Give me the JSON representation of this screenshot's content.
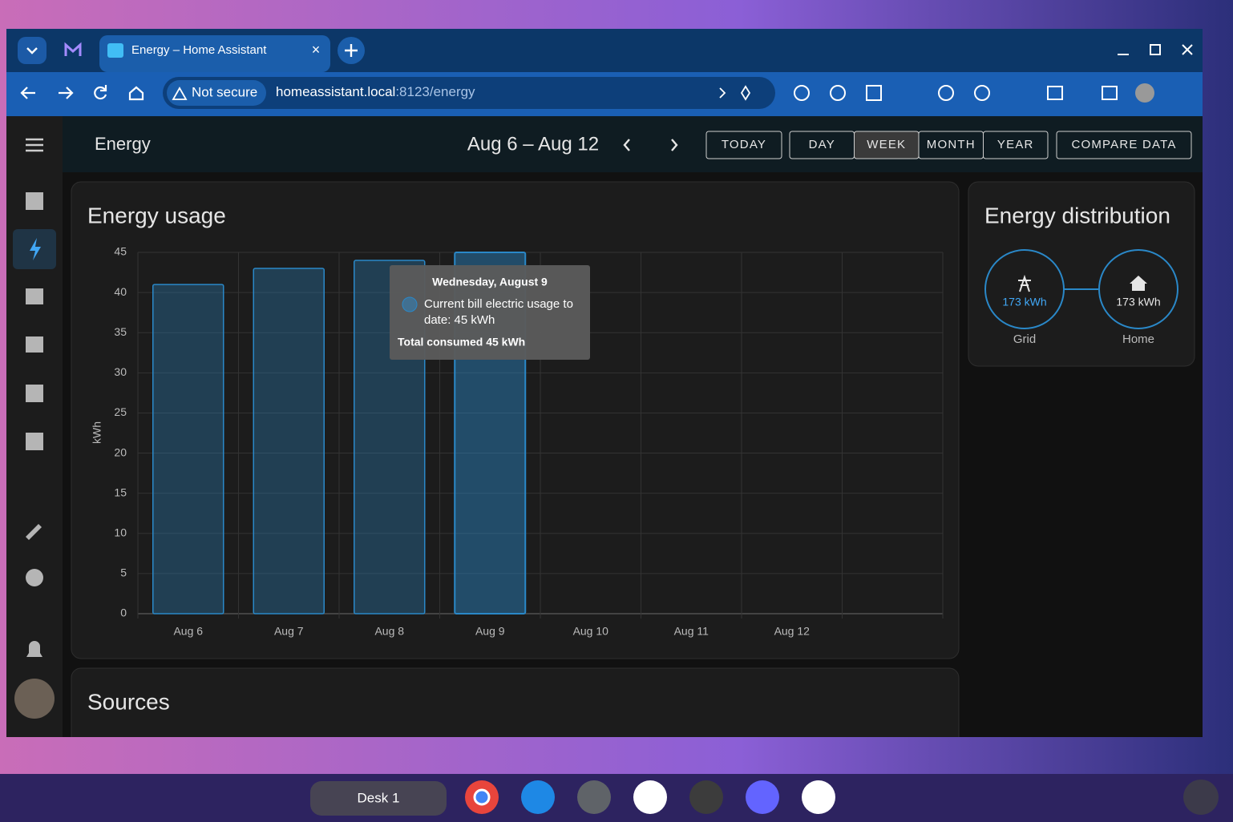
{
  "browser": {
    "tab_title": "Energy – Home Assistant",
    "security": "Not secure",
    "url_host": "homeassistant.local",
    "url_path": ":8123/energy"
  },
  "header": {
    "title": "Energy",
    "date_range": "Aug 6 – Aug 12",
    "today": "TODAY",
    "periods": [
      "DAY",
      "WEEK",
      "MONTH",
      "YEAR"
    ],
    "active_period": 1,
    "compare": "COMPARE DATA"
  },
  "chart_data": {
    "type": "bar",
    "title": "Energy usage",
    "y_label": "kWh",
    "categories": [
      "Aug 6",
      "Aug 7",
      "Aug 8",
      "Aug 9",
      "Aug 10",
      "Aug 11",
      "Aug 12",
      null
    ],
    "values": [
      41,
      43,
      44,
      45,
      null,
      null,
      null,
      null
    ],
    "color": "#2a88c8",
    "highlight": 3,
    "ylim": [
      0,
      45
    ],
    "yticks": [
      0,
      5,
      10,
      15,
      20,
      25,
      30,
      35,
      40,
      45
    ],
    "grid": true,
    "tooltip": {
      "title": "Wednesday, August 9",
      "lines": [
        "Current bill electric usage to",
        "date: 45 kWh"
      ],
      "total": "Total consumed 45 kWh"
    }
  },
  "distribution": {
    "title": "Energy distribution",
    "grid": {
      "value": "173 kWh",
      "label": "Grid"
    },
    "home": {
      "value": "173 kWh",
      "label": "Home"
    }
  },
  "sources": {
    "title": "Sources"
  },
  "shelf": {
    "desk": "Desk 1"
  }
}
